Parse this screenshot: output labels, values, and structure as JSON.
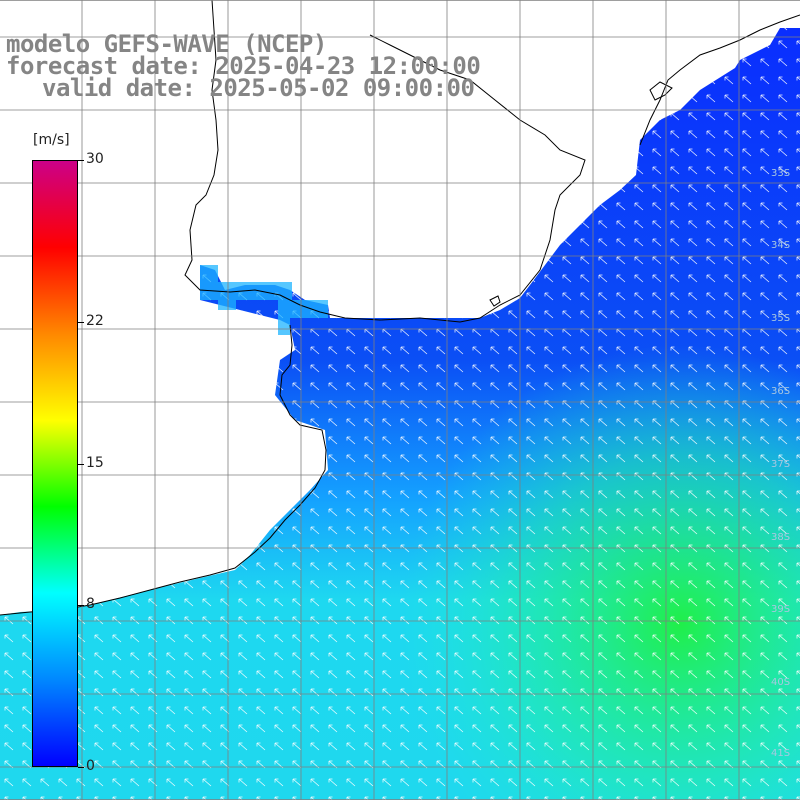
{
  "title": {
    "line1": "modelo GEFS-WAVE (NCEP)",
    "line2": "forecast date: 2025-04-23 12:00:00",
    "line3": "valid date: 2025-05-02 09:00:00"
  },
  "colorbar": {
    "unit": "[m/s]",
    "ticks": [
      {
        "label": "30",
        "value": 30
      },
      {
        "label": "22",
        "value": 22
      },
      {
        "label": "15",
        "value": 15
      },
      {
        "label": "8",
        "value": 8
      },
      {
        "label": "0",
        "value": 0
      }
    ],
    "colors": [
      "#0000ff",
      "#0088ff",
      "#00ffff",
      "#00ff00",
      "#ffff00",
      "#ff8800",
      "#ff0000",
      "#cc0088"
    ]
  },
  "lat_labels": [
    "33S",
    "34S",
    "35S",
    "36S",
    "37S",
    "38S",
    "39S",
    "40S",
    "41S"
  ],
  "colors": {
    "land": "#ffffff",
    "coast": "#000000",
    "grid": "#7f7f7f",
    "title": "#858585"
  }
}
